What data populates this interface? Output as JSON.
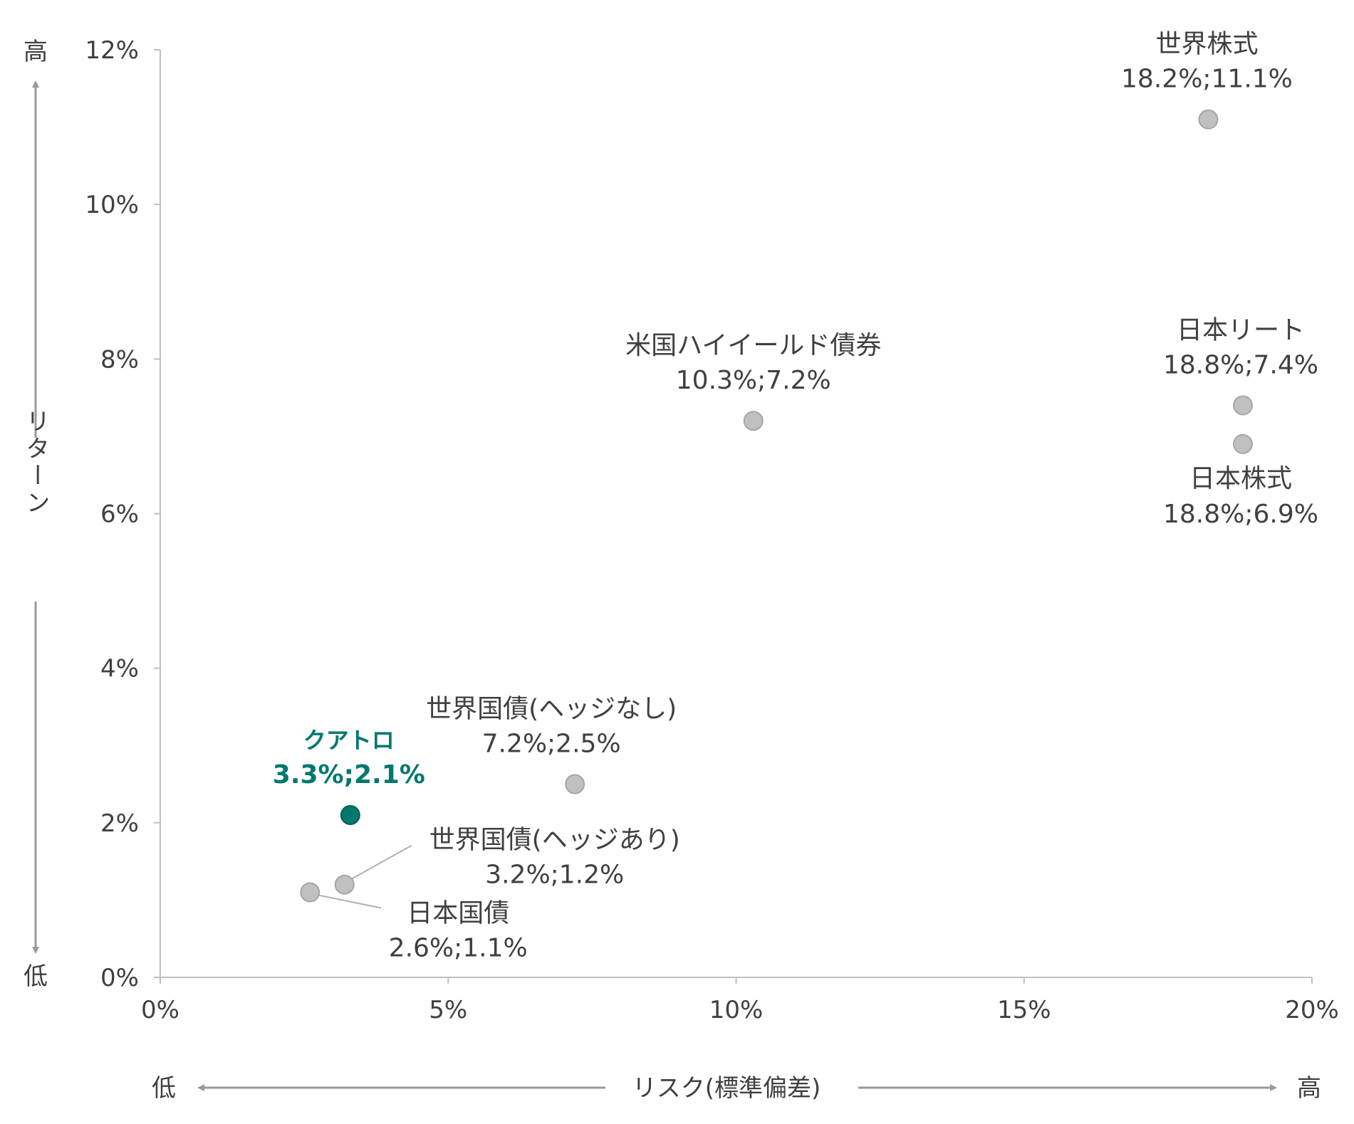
{
  "chart_data": {
    "type": "scatter",
    "title": "",
    "xlabel": "リスク(標準偏差)",
    "ylabel": "リターン",
    "x_low_label": "低",
    "x_high_label": "高",
    "y_low_label": "低",
    "y_high_label": "高",
    "xlim": [
      0,
      20
    ],
    "ylim": [
      0,
      12
    ],
    "x_ticks": [
      0,
      5,
      10,
      15,
      20
    ],
    "y_ticks": [
      0,
      2,
      4,
      6,
      8,
      10,
      12
    ],
    "x_tick_labels": [
      "0%",
      "5%",
      "10%",
      "15%",
      "20%"
    ],
    "y_tick_labels": [
      "0%",
      "2%",
      "4%",
      "6%",
      "8%",
      "10%",
      "12%"
    ],
    "grid": false,
    "colors": {
      "point": "#c0c0c0",
      "highlight": "#00786f",
      "axis": "#bfbfbf",
      "text": "#404040",
      "arrow": "#999999"
    },
    "points": [
      {
        "name": "世界株式",
        "value_label": "18.2%;11.1%",
        "x": 18.2,
        "y": 11.1,
        "highlight": false
      },
      {
        "name": "米国ハイイールド債券",
        "value_label": "10.3%;7.2%",
        "x": 10.3,
        "y": 7.2,
        "highlight": false
      },
      {
        "name": "日本リート",
        "value_label": "18.8%;7.4%",
        "x": 18.8,
        "y": 7.4,
        "highlight": false
      },
      {
        "name": "日本株式",
        "value_label": "18.8%;6.9%",
        "x": 18.8,
        "y": 6.9,
        "highlight": false
      },
      {
        "name": "世界国債(ヘッジなし)",
        "value_label": "7.2%;2.5%",
        "x": 7.2,
        "y": 2.5,
        "highlight": false
      },
      {
        "name": "クアトロ",
        "value_label": "3.3%;2.1%",
        "x": 3.3,
        "y": 2.1,
        "highlight": true
      },
      {
        "name": "世界国債(ヘッジあり)",
        "value_label": "3.2%;1.2%",
        "x": 3.2,
        "y": 1.2,
        "highlight": false
      },
      {
        "name": "日本国債",
        "value_label": "2.6%;1.1%",
        "x": 2.6,
        "y": 1.1,
        "highlight": false
      }
    ]
  }
}
